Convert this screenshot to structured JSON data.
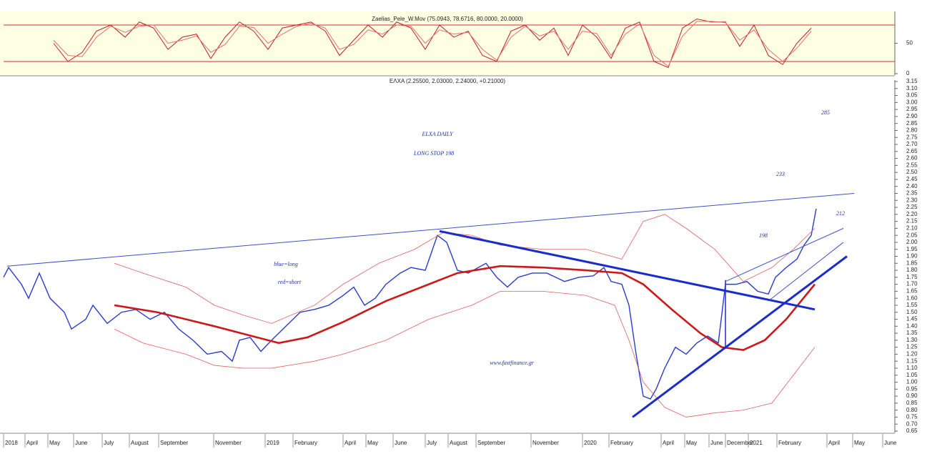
{
  "chart_data": [
    {
      "type": "line",
      "title": "Zaelias_Pele_W.Mov (75.0943, 78.6716, 80.0000, 20.0000)",
      "ylim": [
        0,
        100
      ],
      "yticks": [
        0,
        50
      ],
      "levels": [
        80,
        20
      ],
      "level_color": "#d03030",
      "background": "#ffffe4",
      "xlim": [
        5,
        1250
      ],
      "x": [
        75,
        95,
        115,
        135,
        155,
        175,
        195,
        215,
        235,
        255,
        275,
        295,
        315,
        335,
        355,
        375,
        395,
        415,
        435,
        455,
        475,
        495,
        515,
        535,
        555,
        575,
        595,
        615,
        635,
        655,
        675,
        695,
        715,
        735,
        755,
        775,
        795,
        815,
        835,
        855,
        875,
        895,
        915,
        935,
        955,
        975,
        995,
        1015,
        1035,
        1055,
        1075,
        1095,
        1115,
        1135
      ],
      "series": [
        {
          "color": "#c02020",
          "values": [
            50,
            20,
            35,
            70,
            80,
            60,
            85,
            75,
            40,
            60,
            65,
            25,
            60,
            85,
            70,
            40,
            75,
            80,
            85,
            70,
            30,
            55,
            80,
            60,
            85,
            75,
            40,
            80,
            60,
            70,
            30,
            20,
            70,
            80,
            55,
            75,
            30,
            80,
            60,
            25,
            75,
            85,
            20,
            10,
            75,
            90,
            85,
            85,
            45,
            80,
            30,
            15,
            50,
            75
          ]
        },
        {
          "color": "#e07070",
          "values": [
            55,
            30,
            28,
            60,
            78,
            68,
            78,
            80,
            50,
            55,
            62,
            35,
            48,
            78,
            76,
            50,
            65,
            78,
            83,
            75,
            40,
            48,
            72,
            65,
            80,
            78,
            50,
            72,
            65,
            68,
            40,
            22,
            60,
            78,
            62,
            70,
            40,
            70,
            66,
            30,
            65,
            82,
            30,
            12,
            62,
            86,
            86,
            84,
            55,
            72,
            40,
            20,
            42,
            70
          ]
        }
      ]
    },
    {
      "type": "line",
      "title": "ΕΛΧΑ (2.25500, 2.03000, 2.24000, +0.21000)",
      "ylim": [
        0.65,
        3.15
      ],
      "yticks": [
        0.65,
        {
          "value": 0.7,
          "label": "0.70"
        },
        0.75,
        {
          "value": 0.8,
          "label": "0.80"
        },
        0.85,
        {
          "value": 0.9,
          "label": "0.90"
        },
        0.95,
        {
          "value": 1,
          "label": "1.00"
        },
        1.05,
        {
          "value": 1.1,
          "label": "1.10"
        },
        1.15,
        {
          "value": 1.2,
          "label": "1.20"
        },
        1.25,
        {
          "value": 1.3,
          "label": "1.30"
        },
        1.35,
        {
          "value": 1.4,
          "label": "1.40"
        },
        1.45,
        {
          "value": 1.5,
          "label": "1.50"
        },
        1.55,
        {
          "value": 1.6,
          "label": "1.60"
        },
        1.65,
        {
          "value": 1.7,
          "label": "1.70"
        },
        1.75,
        {
          "value": 1.8,
          "label": "1.80"
        },
        1.85,
        {
          "value": 1.9,
          "label": "1.90"
        },
        1.95,
        {
          "value": 2,
          "label": "2.00"
        },
        2.05,
        {
          "value": 2.1,
          "label": "2.10"
        },
        2.15,
        {
          "value": 2.2,
          "label": "2.20"
        },
        2.25,
        {
          "value": 2.3,
          "label": "2.30"
        },
        2.35,
        {
          "value": 2.4,
          "label": "2.40"
        },
        2.45,
        {
          "value": 2.5,
          "label": "2.50"
        },
        2.55,
        {
          "value": 2.6,
          "label": "2.60"
        },
        2.65,
        {
          "value": 2.7,
          "label": "2.70"
        },
        2.75,
        {
          "value": 2.8,
          "label": "2.80"
        },
        2.85,
        {
          "value": 2.9,
          "label": "2.90"
        },
        2.95,
        {
          "value": 3,
          "label": "3.00"
        },
        3.05,
        {
          "value": 3.1,
          "label": "3.10"
        },
        3.15
      ],
      "xlim": [
        5,
        1250
      ],
      "xticks": [
        {
          "value": 5,
          "label": "2018"
        },
        {
          "value": 35,
          "label": "April"
        },
        {
          "value": 67,
          "label": "May"
        },
        {
          "value": 103,
          "label": "June"
        },
        {
          "value": 143,
          "label": "July"
        },
        {
          "value": 181,
          "label": "August"
        },
        {
          "value": 222,
          "label": "September"
        },
        {
          "value": 299,
          "label": "November"
        },
        {
          "value": 371,
          "label": "2019"
        },
        {
          "value": 410,
          "label": "February"
        },
        {
          "value": 480,
          "label": "April"
        },
        {
          "value": 512,
          "label": "May"
        },
        {
          "value": 550,
          "label": "June"
        },
        {
          "value": 595,
          "label": "July"
        },
        {
          "value": 627,
          "label": "August"
        },
        {
          "value": 666,
          "label": "September"
        },
        {
          "value": 743,
          "label": "November"
        },
        {
          "value": 815,
          "label": "2020"
        },
        {
          "value": 852,
          "label": "February"
        },
        {
          "value": 925,
          "label": "April"
        },
        {
          "value": 958,
          "label": "May"
        },
        {
          "value": 992,
          "label": "June"
        },
        {
          "value": 1015,
          "label": "December"
        },
        {
          "value": 1047,
          "label": "2021"
        },
        {
          "value": 1087,
          "label": "February"
        },
        {
          "value": 1157,
          "label": "April"
        },
        {
          "value": 1193,
          "label": "May"
        },
        {
          "value": 1235,
          "label": "June"
        }
      ],
      "series": [
        {
          "color": "#2a3ccc",
          "width": 1.4,
          "x": [
            5,
            12,
            30,
            40,
            55,
            70,
            90,
            100,
            120,
            130,
            150,
            170,
            190,
            210,
            230,
            250,
            270,
            290,
            310,
            325,
            335,
            350,
            365,
            380,
            400,
            420,
            440,
            460,
            480,
            495,
            510,
            525,
            540,
            560,
            575,
            595,
            612,
            625,
            640,
            655,
            680,
            695,
            710,
            725,
            745,
            765,
            790,
            810,
            830,
            845,
            855,
            870,
            880,
            890,
            900,
            910,
            918,
            930,
            945,
            960,
            975,
            990,
            1005,
            1015,
            1030,
            1045,
            1060,
            1075,
            1085,
            1100,
            1115,
            1125,
            1135,
            1142
          ],
          "values": [
            1.75,
            1.82,
            1.7,
            1.6,
            1.78,
            1.6,
            1.5,
            1.38,
            1.45,
            1.55,
            1.42,
            1.5,
            1.52,
            1.45,
            1.5,
            1.38,
            1.3,
            1.2,
            1.22,
            1.15,
            1.3,
            1.32,
            1.22,
            1.3,
            1.4,
            1.5,
            1.52,
            1.55,
            1.62,
            1.68,
            1.55,
            1.6,
            1.7,
            1.78,
            1.82,
            1.8,
            2.05,
            2,
            1.8,
            1.78,
            1.85,
            1.75,
            1.68,
            1.75,
            1.78,
            1.78,
            1.72,
            1.75,
            1.76,
            1.82,
            1.72,
            1.7,
            1.55,
            1.2,
            0.9,
            0.88,
            0.95,
            1.1,
            1.25,
            1.2,
            1.28,
            1.33,
            1.28,
            1.7,
            1.7,
            1.72,
            1.65,
            1.63,
            1.75,
            1.82,
            1.88,
            1.98,
            2.05,
            2.24
          ]
        },
        {
          "color": "#cc1a1a",
          "width": 2.6,
          "x": [
            160,
            220,
            300,
            360,
            390,
            430,
            480,
            540,
            600,
            640,
            700,
            760,
            820,
            870,
            900,
            940,
            980,
            1010,
            1040,
            1070,
            1100,
            1140
          ],
          "values": [
            1.55,
            1.5,
            1.4,
            1.32,
            1.28,
            1.32,
            1.43,
            1.58,
            1.7,
            1.78,
            1.83,
            1.82,
            1.8,
            1.78,
            1.7,
            1.52,
            1.35,
            1.25,
            1.23,
            1.3,
            1.45,
            1.7
          ]
        },
        {
          "color": "#e06060",
          "width": 0.8,
          "x": [
            160,
            200,
            260,
            300,
            340,
            380,
            440,
            480,
            530,
            580,
            620,
            660,
            700,
            760,
            820,
            870,
            900,
            930,
            960,
            1000,
            1040,
            1080,
            1110,
            1140
          ],
          "values": [
            1.85,
            1.78,
            1.68,
            1.55,
            1.48,
            1.42,
            1.55,
            1.7,
            1.85,
            1.95,
            2.07,
            2.05,
            1.98,
            1.95,
            1.95,
            1.88,
            2.15,
            2.2,
            2.1,
            1.95,
            1.72,
            1.82,
            1.95,
            2.1
          ]
        },
        {
          "color": "#e06060",
          "width": 0.8,
          "x": [
            160,
            200,
            260,
            300,
            340,
            380,
            440,
            480,
            540,
            600,
            660,
            700,
            760,
            820,
            860,
            880,
            900,
            930,
            960,
            1000,
            1040,
            1080,
            1110,
            1140
          ],
          "values": [
            1.38,
            1.28,
            1.2,
            1.12,
            1.1,
            1.1,
            1.15,
            1.2,
            1.3,
            1.45,
            1.55,
            1.65,
            1.65,
            1.62,
            1.55,
            1.3,
            1,
            0.82,
            0.75,
            0.78,
            0.8,
            0.85,
            1.05,
            1.25
          ]
        }
      ],
      "trendlines": [
        {
          "color": "#4050c8",
          "width": 1,
          "x": [
            10,
            1195
          ],
          "y": [
            1.83,
            2.35
          ]
        },
        {
          "color": "#1a2ccc",
          "width": 3,
          "x": [
            615,
            1140
          ],
          "y": [
            2.08,
            1.52
          ]
        },
        {
          "color": "#1a2ccc",
          "width": 3,
          "x": [
            885,
            1185
          ],
          "y": [
            0.75,
            1.9
          ]
        },
        {
          "color": "#1a2ccc",
          "width": 1.5,
          "x": [
            1015,
            1015
          ],
          "y": [
            1.24,
            1.73
          ]
        },
        {
          "color": "#4050c8",
          "width": 1,
          "x": [
            1015,
            1180
          ],
          "y": [
            1.72,
            2.1
          ]
        },
        {
          "color": "#4050c8",
          "width": 1,
          "x": [
            1075,
            1180
          ],
          "y": [
            1.58,
            2
          ]
        }
      ],
      "annotations": [
        "ELXA DAILY",
        "LONG STOP 198",
        "285",
        "233",
        "212",
        "198",
        "blue=long",
        "red=short",
        "www.fastfinance.gr"
      ]
    }
  ]
}
